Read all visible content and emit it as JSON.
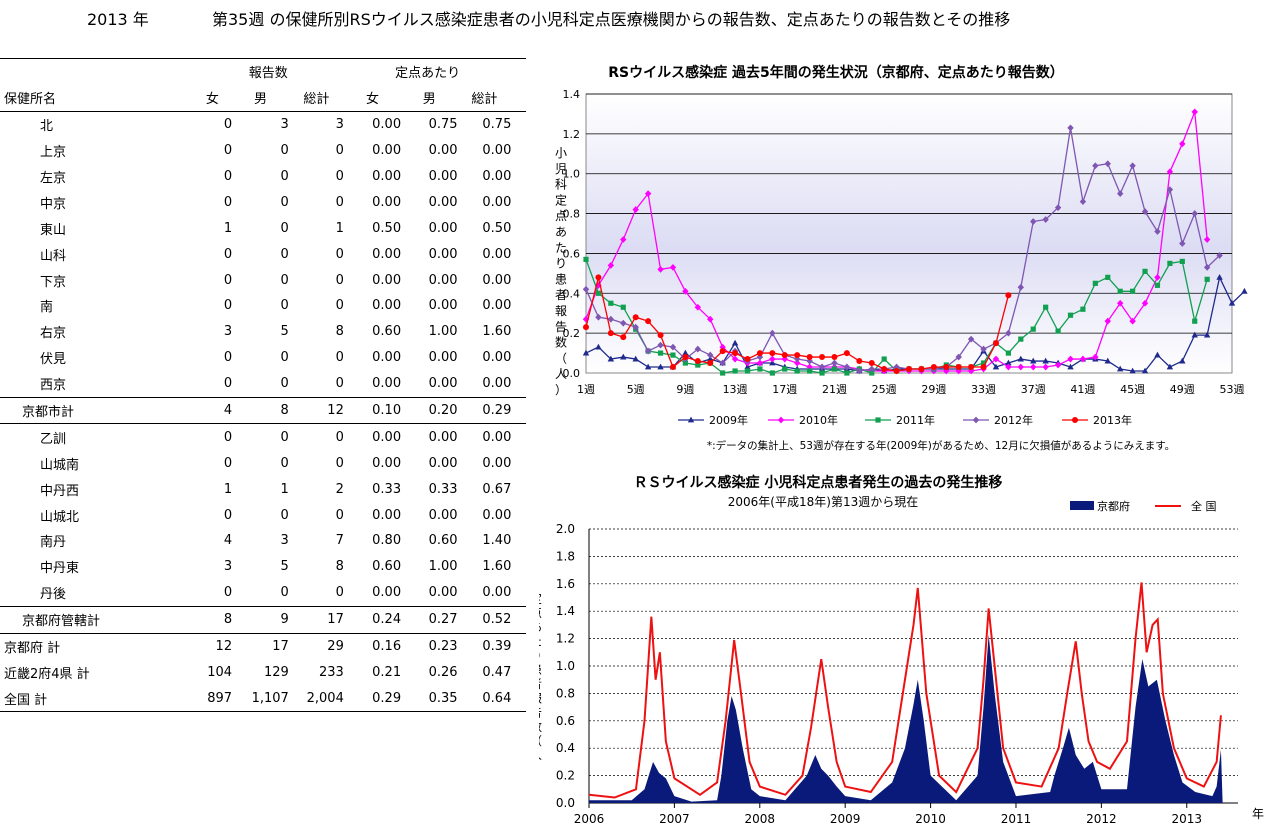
{
  "page_title": {
    "year": "2013 年",
    "text": "第35週 の保健所別RSウイルス感染症患者の小児科定点医療機関からの報告数、定点あたりの報告数とその推移"
  },
  "table": {
    "group_headers": {
      "reports": "報告数",
      "per_point": "定点あたり"
    },
    "columns": [
      "保健所名",
      "女",
      "男",
      "総計",
      "女",
      "男",
      "総計"
    ],
    "rows": [
      {
        "name": "北",
        "cells": [
          "0",
          "3",
          "3",
          "0.00",
          "0.75",
          "0.75"
        ],
        "indent": 2
      },
      {
        "name": "上京",
        "cells": [
          "0",
          "0",
          "0",
          "0.00",
          "0.00",
          "0.00"
        ],
        "indent": 2
      },
      {
        "name": "左京",
        "cells": [
          "0",
          "0",
          "0",
          "0.00",
          "0.00",
          "0.00"
        ],
        "indent": 2
      },
      {
        "name": "中京",
        "cells": [
          "0",
          "0",
          "0",
          "0.00",
          "0.00",
          "0.00"
        ],
        "indent": 2
      },
      {
        "name": "東山",
        "cells": [
          "1",
          "0",
          "1",
          "0.50",
          "0.00",
          "0.50"
        ],
        "indent": 2
      },
      {
        "name": "山科",
        "cells": [
          "0",
          "0",
          "0",
          "0.00",
          "0.00",
          "0.00"
        ],
        "indent": 2
      },
      {
        "name": "下京",
        "cells": [
          "0",
          "0",
          "0",
          "0.00",
          "0.00",
          "0.00"
        ],
        "indent": 2
      },
      {
        "name": "南",
        "cells": [
          "0",
          "0",
          "0",
          "0.00",
          "0.00",
          "0.00"
        ],
        "indent": 2
      },
      {
        "name": "右京",
        "cells": [
          "3",
          "5",
          "8",
          "0.60",
          "1.00",
          "1.60"
        ],
        "indent": 2
      },
      {
        "name": "伏見",
        "cells": [
          "0",
          "0",
          "0",
          "0.00",
          "0.00",
          "0.00"
        ],
        "indent": 2
      },
      {
        "name": "西京",
        "cells": [
          "0",
          "0",
          "0",
          "0.00",
          "0.00",
          "0.00"
        ],
        "indent": 2
      },
      {
        "name": "京都市計",
        "cells": [
          "4",
          "8",
          "12",
          "0.10",
          "0.20",
          "0.29"
        ],
        "indent": 1,
        "bar": true
      },
      {
        "name": "乙訓",
        "cells": [
          "0",
          "0",
          "0",
          "0.00",
          "0.00",
          "0.00"
        ],
        "indent": 2,
        "bar": true
      },
      {
        "name": "山城南",
        "cells": [
          "0",
          "0",
          "0",
          "0.00",
          "0.00",
          "0.00"
        ],
        "indent": 2
      },
      {
        "name": "中丹西",
        "cells": [
          "1",
          "1",
          "2",
          "0.33",
          "0.33",
          "0.67"
        ],
        "indent": 2
      },
      {
        "name": "山城北",
        "cells": [
          "0",
          "0",
          "0",
          "0.00",
          "0.00",
          "0.00"
        ],
        "indent": 2
      },
      {
        "name": "南丹",
        "cells": [
          "4",
          "3",
          "7",
          "0.80",
          "0.60",
          "1.40"
        ],
        "indent": 2
      },
      {
        "name": "中丹東",
        "cells": [
          "3",
          "5",
          "8",
          "0.60",
          "1.00",
          "1.60"
        ],
        "indent": 2
      },
      {
        "name": "丹後",
        "cells": [
          "0",
          "0",
          "0",
          "0.00",
          "0.00",
          "0.00"
        ],
        "indent": 2
      },
      {
        "name": "京都府管轄計",
        "cells": [
          "8",
          "9",
          "17",
          "0.24",
          "0.27",
          "0.52"
        ],
        "indent": 1,
        "bar": true
      },
      {
        "name": "京都府 計",
        "cells": [
          "12",
          "17",
          "29",
          "0.16",
          "0.23",
          "0.39"
        ],
        "indent": 0,
        "bar": true
      },
      {
        "name": "近畿2府4県 計",
        "cells": [
          "104",
          "129",
          "233",
          "0.21",
          "0.26",
          "0.47"
        ],
        "indent": 0
      },
      {
        "name": "全国 計",
        "cells": [
          "897",
          "1,107",
          "2,004",
          "0.29",
          "0.35",
          "0.64"
        ],
        "indent": 0,
        "last": true
      }
    ]
  },
  "chart_data": [
    {
      "type": "line",
      "title": "RSウイルス感染症 過去5年間の発生状況（京都府、定点あたり報告数）",
      "ylabel": "小児科定点あたり患者報告数（人）",
      "ylim": [
        0,
        1.4
      ],
      "yticks": [
        "0.0",
        "0.2",
        "0.4",
        "0.6",
        "0.8",
        "1.0",
        "1.2",
        "1.4"
      ],
      "xticks": [
        "1週",
        "5週",
        "9週",
        "13週",
        "17週",
        "21週",
        "25週",
        "29週",
        "33週",
        "37週",
        "41週",
        "45週",
        "49週",
        "53週"
      ],
      "grid": true,
      "legend_position": "bottom",
      "note": "*:データの集計上、53週が存在する年(2009年)があるため、12月に欠損値があるようにみえます。",
      "series": [
        {
          "name": "2009年",
          "color": "#1f2a8c",
          "marker": "triangle",
          "values": [
            0.1,
            0.13,
            0.07,
            0.08,
            0.07,
            0.03,
            0.03,
            0.03,
            0.1,
            0.05,
            0.07,
            0.05,
            0.15,
            0.03,
            0.05,
            0.05,
            0.03,
            0.02,
            0.02,
            0.02,
            0.02,
            0.02,
            0.01,
            0.02,
            0.01,
            0.02,
            0.02,
            0.02,
            0.02,
            0.02,
            0.02,
            0.02,
            0.11,
            0.03,
            0.05,
            0.07,
            0.06,
            0.06,
            0.05,
            0.03,
            0.07,
            0.07,
            0.06,
            0.02,
            0.01,
            0.01,
            0.09,
            0.03,
            0.06,
            0.19,
            0.19,
            0.48,
            0.35,
            0.41
          ]
        },
        {
          "name": "2010年",
          "color": "#ff00ff",
          "marker": "diamond",
          "values": [
            0.27,
            0.44,
            0.54,
            0.67,
            0.82,
            0.9,
            0.52,
            0.53,
            0.41,
            0.33,
            0.27,
            0.13,
            0.07,
            0.05,
            0.05,
            0.07,
            0.07,
            0.05,
            0.03,
            0.03,
            0.03,
            0.03,
            0.02,
            0.01,
            0.01,
            0.01,
            0.01,
            0.01,
            0.01,
            0.01,
            0.01,
            0.01,
            0.02,
            0.07,
            0.03,
            0.03,
            0.03,
            0.03,
            0.04,
            0.07,
            0.07,
            0.08,
            0.26,
            0.35,
            0.26,
            0.35,
            0.48,
            1.01,
            1.15,
            1.31,
            0.67
          ]
        },
        {
          "name": "2011年",
          "color": "#11a050",
          "marker": "square",
          "values": [
            0.57,
            0.4,
            0.35,
            0.33,
            0.22,
            0.11,
            0.1,
            0.09,
            0.05,
            0.04,
            0.05,
            0.0,
            0.01,
            0.01,
            0.02,
            0.0,
            0.02,
            0.01,
            0.01,
            0.0,
            0.02,
            0.0,
            0.02,
            0.0,
            0.07,
            0.01,
            0.02,
            0.02,
            0.02,
            0.04,
            0.03,
            0.03,
            0.05,
            0.15,
            0.1,
            0.17,
            0.22,
            0.33,
            0.21,
            0.29,
            0.32,
            0.45,
            0.48,
            0.41,
            0.41,
            0.51,
            0.44,
            0.55,
            0.56,
            0.26,
            0.47
          ]
        },
        {
          "name": "2012年",
          "color": "#7f56b2",
          "marker": "diamond",
          "values": [
            0.42,
            0.28,
            0.27,
            0.25,
            0.23,
            0.11,
            0.14,
            0.13,
            0.07,
            0.12,
            0.09,
            0.05,
            0.11,
            0.06,
            0.08,
            0.2,
            0.09,
            0.07,
            0.06,
            0.03,
            0.05,
            0.03,
            0.01,
            0.02,
            0.02,
            0.03,
            0.02,
            0.02,
            0.02,
            0.03,
            0.08,
            0.17,
            0.12,
            0.15,
            0.2,
            0.43,
            0.76,
            0.77,
            0.83,
            1.23,
            0.86,
            1.04,
            1.05,
            0.9,
            1.04,
            0.81,
            0.71,
            0.92,
            0.65,
            0.8,
            0.53,
            0.59
          ]
        },
        {
          "name": "2013年",
          "color": "#ff0000",
          "marker": "circle",
          "values": [
            0.23,
            0.48,
            0.2,
            0.18,
            0.28,
            0.26,
            0.19,
            0.03,
            0.08,
            0.06,
            0.05,
            0.11,
            0.1,
            0.07,
            0.1,
            0.1,
            0.09,
            0.09,
            0.08,
            0.08,
            0.08,
            0.1,
            0.06,
            0.05,
            0.02,
            0.01,
            0.02,
            0.02,
            0.03,
            0.03,
            0.03,
            0.03,
            0.03,
            0.15,
            0.39
          ]
        }
      ]
    },
    {
      "type": "area",
      "title": "ＲＳウイルス感染症 小児科定点患者発生の過去の発生推移",
      "subtitle": "2006年(平成18年)第13週から現在",
      "ylabel": "定点あたり患者報告数（人）",
      "xlabel": "年",
      "ylim": [
        0,
        2.0
      ],
      "yticks": [
        "0.0",
        "0.2",
        "0.4",
        "0.6",
        "0.8",
        "1.0",
        "1.2",
        "1.4",
        "1.6",
        "1.8",
        "2.0"
      ],
      "xticks": [
        "2006",
        "2007",
        "2008",
        "2009",
        "2010",
        "2011",
        "2012",
        "2013"
      ],
      "grid": true,
      "legend_position": "top-right",
      "series": [
        {
          "name": "京都府",
          "color": "#0a1a7a",
          "style": "area",
          "points": [
            [
              2006.0,
              0.02
            ],
            [
              2006.5,
              0.02
            ],
            [
              2006.65,
              0.1
            ],
            [
              2006.75,
              0.3
            ],
            [
              2006.82,
              0.22
            ],
            [
              2006.9,
              0.18
            ],
            [
              2007.0,
              0.05
            ],
            [
              2007.2,
              0.01
            ],
            [
              2007.5,
              0.02
            ],
            [
              2007.55,
              0.2
            ],
            [
              2007.62,
              0.6
            ],
            [
              2007.67,
              0.78
            ],
            [
              2007.72,
              0.68
            ],
            [
              2007.8,
              0.4
            ],
            [
              2007.9,
              0.1
            ],
            [
              2008.0,
              0.05
            ],
            [
              2008.3,
              0.02
            ],
            [
              2008.55,
              0.2
            ],
            [
              2008.65,
              0.35
            ],
            [
              2008.72,
              0.25
            ],
            [
              2008.8,
              0.2
            ],
            [
              2008.9,
              0.12
            ],
            [
              2009.0,
              0.05
            ],
            [
              2009.3,
              0.02
            ],
            [
              2009.55,
              0.15
            ],
            [
              2009.7,
              0.4
            ],
            [
              2009.8,
              0.72
            ],
            [
              2009.85,
              0.9
            ],
            [
              2009.92,
              0.6
            ],
            [
              2010.0,
              0.2
            ],
            [
              2010.3,
              0.02
            ],
            [
              2010.55,
              0.2
            ],
            [
              2010.62,
              0.7
            ],
            [
              2010.68,
              1.23
            ],
            [
              2010.75,
              0.8
            ],
            [
              2010.85,
              0.3
            ],
            [
              2011.0,
              0.05
            ],
            [
              2011.4,
              0.08
            ],
            [
              2011.45,
              0.2
            ],
            [
              2011.55,
              0.4
            ],
            [
              2011.62,
              0.55
            ],
            [
              2011.7,
              0.35
            ],
            [
              2011.8,
              0.25
            ],
            [
              2011.9,
              0.3
            ],
            [
              2012.0,
              0.1
            ],
            [
              2012.3,
              0.1
            ],
            [
              2012.4,
              0.7
            ],
            [
              2012.48,
              1.05
            ],
            [
              2012.55,
              0.85
            ],
            [
              2012.65,
              0.9
            ],
            [
              2012.75,
              0.6
            ],
            [
              2012.85,
              0.35
            ],
            [
              2012.95,
              0.15
            ],
            [
              2013.1,
              0.08
            ],
            [
              2013.3,
              0.05
            ],
            [
              2013.35,
              0.12
            ],
            [
              2013.4,
              0.39
            ],
            [
              2013.42,
              0.0
            ]
          ]
        },
        {
          "name": "全 国",
          "color": "#ee1111",
          "style": "line",
          "points": [
            [
              2006.0,
              0.06
            ],
            [
              2006.3,
              0.04
            ],
            [
              2006.55,
              0.1
            ],
            [
              2006.65,
              0.6
            ],
            [
              2006.73,
              1.36
            ],
            [
              2006.78,
              0.9
            ],
            [
              2006.83,
              1.1
            ],
            [
              2006.9,
              0.45
            ],
            [
              2007.0,
              0.18
            ],
            [
              2007.3,
              0.06
            ],
            [
              2007.5,
              0.15
            ],
            [
              2007.6,
              0.6
            ],
            [
              2007.7,
              1.19
            ],
            [
              2007.78,
              0.8
            ],
            [
              2007.88,
              0.3
            ],
            [
              2008.0,
              0.12
            ],
            [
              2008.3,
              0.06
            ],
            [
              2008.5,
              0.2
            ],
            [
              2008.6,
              0.55
            ],
            [
              2008.72,
              1.05
            ],
            [
              2008.8,
              0.7
            ],
            [
              2008.9,
              0.3
            ],
            [
              2009.0,
              0.12
            ],
            [
              2009.3,
              0.08
            ],
            [
              2009.55,
              0.3
            ],
            [
              2009.7,
              0.9
            ],
            [
              2009.8,
              1.3
            ],
            [
              2009.85,
              1.57
            ],
            [
              2009.95,
              0.8
            ],
            [
              2010.1,
              0.2
            ],
            [
              2010.3,
              0.08
            ],
            [
              2010.55,
              0.4
            ],
            [
              2010.62,
              0.9
            ],
            [
              2010.68,
              1.42
            ],
            [
              2010.75,
              1.0
            ],
            [
              2010.85,
              0.4
            ],
            [
              2011.0,
              0.15
            ],
            [
              2011.3,
              0.12
            ],
            [
              2011.5,
              0.4
            ],
            [
              2011.6,
              0.8
            ],
            [
              2011.7,
              1.18
            ],
            [
              2011.77,
              0.8
            ],
            [
              2011.85,
              0.45
            ],
            [
              2011.95,
              0.3
            ],
            [
              2012.1,
              0.25
            ],
            [
              2012.3,
              0.45
            ],
            [
              2012.4,
              1.2
            ],
            [
              2012.47,
              1.61
            ],
            [
              2012.53,
              1.1
            ],
            [
              2012.6,
              1.3
            ],
            [
              2012.66,
              1.34
            ],
            [
              2012.72,
              0.8
            ],
            [
              2012.85,
              0.4
            ],
            [
              2013.0,
              0.18
            ],
            [
              2013.2,
              0.12
            ],
            [
              2013.35,
              0.3
            ],
            [
              2013.4,
              0.64
            ]
          ]
        }
      ]
    }
  ]
}
